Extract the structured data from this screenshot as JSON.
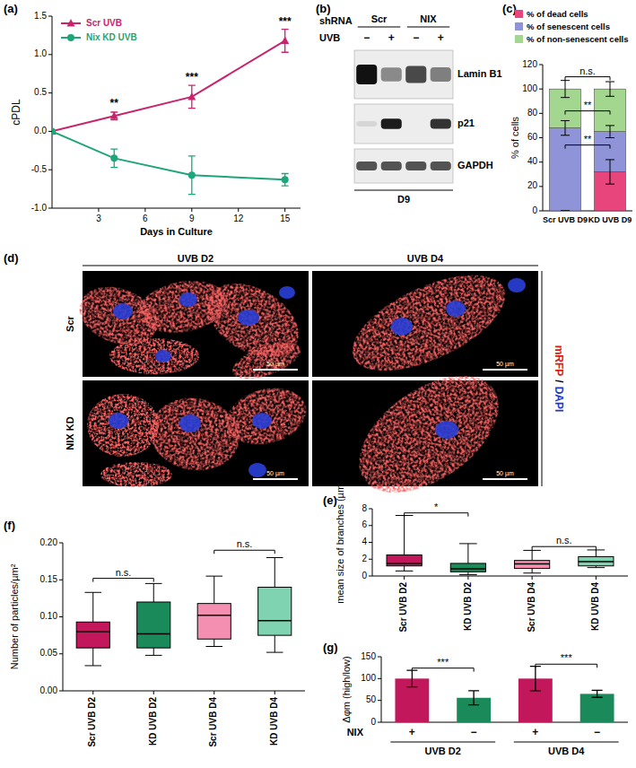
{
  "chart_data": [
    {
      "panel": "(a)",
      "type": "line",
      "x_label": "Days in Culture",
      "y_label": "cPDL",
      "xlim": [
        0,
        16
      ],
      "xticks": [
        3,
        6,
        9,
        12,
        15
      ],
      "ylim": [
        -1,
        1.5
      ],
      "yticks": [
        {
          "value": -1,
          "label": "-1.0"
        },
        {
          "value": -0.5,
          "label": "-0.5"
        },
        {
          "value": 0,
          "label": "0.0"
        },
        {
          "value": 0.5,
          "label": "0.5"
        },
        {
          "value": 1,
          "label": "1.0"
        },
        {
          "value": 1.5,
          "label": "1.5"
        }
      ],
      "legend": "upper left",
      "x": [
        0,
        4,
        9,
        15
      ],
      "series": [
        {
          "name": "Scr UVB",
          "color": "#c8246c",
          "marker": "triangle",
          "values": [
            0,
            0.2,
            0.45,
            1.18
          ],
          "errors": [
            0,
            0.05,
            0.15,
            0.15
          ]
        },
        {
          "name": "Nix KD UVB",
          "color": "#1fa57a",
          "marker": "circle",
          "values": [
            0,
            -0.35,
            -0.57,
            -0.63
          ],
          "errors": [
            0,
            0.12,
            0.25,
            0.08
          ]
        }
      ],
      "annotations": [
        {
          "x": 4,
          "y": 0.32,
          "text": "**"
        },
        {
          "x": 9,
          "y": 0.66,
          "text": "***"
        },
        {
          "x": 15,
          "y": 1.38,
          "text": "***"
        }
      ]
    },
    {
      "panel": "(c)",
      "type": "bar",
      "stacked": true,
      "categories": [
        "Scr UVB D9",
        "KD UVB D9"
      ],
      "y_label": "% of cells",
      "ylim": [
        0,
        120
      ],
      "yticks": [
        0,
        20,
        40,
        60,
        80,
        100,
        120
      ],
      "legend": "top",
      "series": [
        {
          "name": "% of dead cells",
          "color": "#e8457c",
          "values": [
            0,
            32
          ],
          "errors": [
            0,
            10
          ]
        },
        {
          "name": "% of senescent cells",
          "color": "#8f93d8",
          "values": [
            68,
            33
          ],
          "errors": [
            6,
            5
          ]
        },
        {
          "name": "% of non-senescent cells",
          "color": "#a3d68f",
          "values": [
            32,
            35
          ],
          "errors": [
            7,
            6
          ]
        }
      ],
      "annotations": [
        {
          "between": [
            0,
            1
          ],
          "y": 110,
          "text": "n.s."
        },
        {
          "between": [
            0,
            1
          ],
          "y": 82,
          "text": "**"
        },
        {
          "between": [
            0,
            1
          ],
          "y": 54,
          "text": "**"
        }
      ]
    },
    {
      "panel": "(e)",
      "type": "box",
      "categories": [
        "Scr UVB D2",
        "KD UVB D2",
        "Scr UVB D4",
        "KD UVB D4"
      ],
      "colors": [
        "#c2185b",
        "#1a8a5a",
        "#f48fb1",
        "#7fd3b0"
      ],
      "y_label": "mean size of branches (µm)",
      "ylim": [
        0,
        8
      ],
      "yticks": [
        0,
        2,
        4,
        6,
        8
      ],
      "min": [
        0.6,
        0.15,
        0.35,
        1.0
      ],
      "q1": [
        1.2,
        0.5,
        0.9,
        1.2
      ],
      "median": [
        1.5,
        0.85,
        1.45,
        1.7
      ],
      "q3": [
        2.5,
        1.5,
        1.85,
        2.3
      ],
      "max": [
        7.2,
        3.85,
        3.05,
        3.1
      ],
      "annotations": [
        {
          "between": [
            0,
            1
          ],
          "y": 7.5,
          "text": "*"
        },
        {
          "between": [
            2,
            3
          ],
          "y": 3.5,
          "text": "n.s."
        }
      ]
    },
    {
      "panel": "(f)",
      "type": "box",
      "categories": [
        "Scr UVB D2",
        "KD UVB D2",
        "Scr UVB D4",
        "KD UVB D4"
      ],
      "colors": [
        "#c2185b",
        "#1a8a5a",
        "#f48fb1",
        "#7fd3b0"
      ],
      "y_label": "Number of particles/µm²",
      "ylim": [
        0,
        0.2
      ],
      "yticks": [
        {
          "value": 0,
          "label": "0.00"
        },
        {
          "value": 0.05,
          "label": "0.05"
        },
        {
          "value": 0.1,
          "label": "0.10"
        },
        {
          "value": 0.15,
          "label": "0.15"
        },
        {
          "value": 0.2,
          "label": "0.20"
        }
      ],
      "min": [
        0.034,
        0.048,
        0.06,
        0.052
      ],
      "q1": [
        0.058,
        0.058,
        0.07,
        0.075
      ],
      "median": [
        0.08,
        0.077,
        0.102,
        0.095
      ],
      "q3": [
        0.093,
        0.12,
        0.118,
        0.14
      ],
      "max": [
        0.133,
        0.145,
        0.155,
        0.18
      ],
      "annotations": [
        {
          "between": [
            0,
            1
          ],
          "y": 0.152,
          "text": "n.s."
        },
        {
          "between": [
            2,
            3
          ],
          "y": 0.19,
          "text": "n.s."
        }
      ]
    },
    {
      "panel": "(g)",
      "type": "bar",
      "categories": [
        "+",
        "−",
        "+",
        "−"
      ],
      "category_title": "NIX",
      "groups": [
        {
          "label": "UVB D2",
          "members": [
            0,
            1
          ]
        },
        {
          "label": "UVB D4",
          "members": [
            2,
            3
          ]
        }
      ],
      "colors": [
        "#c2185b",
        "#1a8a5a",
        "#c2185b",
        "#1a8a5a"
      ],
      "y_label": "Δφm (high/low)",
      "ylim": [
        0,
        150
      ],
      "yticks": [
        0,
        50,
        100,
        150
      ],
      "values": [
        100,
        56,
        100,
        65
      ],
      "errors": [
        19,
        16,
        28,
        8
      ],
      "annotations": [
        {
          "between": [
            0,
            1
          ],
          "y": 124,
          "text": "***"
        },
        {
          "between": [
            2,
            3
          ],
          "y": 133,
          "text": "***"
        }
      ]
    }
  ],
  "blot": {
    "panel": "(b)",
    "header": "shRNA",
    "groups": [
      {
        "label": "Scr",
        "members": [
          0,
          1
        ]
      },
      {
        "label": "NIX",
        "members": [
          2,
          3
        ]
      }
    ],
    "treatment": "UVB",
    "lanes": [
      "−",
      "+",
      "−",
      "+"
    ],
    "rows": [
      {
        "label": "Lamin B1",
        "intensity": [
          1,
          0.45,
          0.75,
          0.5
        ]
      },
      {
        "label": "p21",
        "intensity": [
          0.1,
          0.95,
          0,
          0.85
        ]
      },
      {
        "label": "GAPDH",
        "intensity": [
          0.7,
          0.7,
          0.7,
          0.7
        ]
      }
    ],
    "footer": "D9"
  },
  "micrographs": {
    "panel": "(d)",
    "columns": [
      "UVB D2",
      "UVB D4"
    ],
    "rows": [
      "Scr",
      "NIX KD"
    ],
    "scale_bar": "50 µm",
    "stain": [
      {
        "text": "mRFP",
        "color": "#e01818"
      },
      {
        "text": "/",
        "color": "#000000"
      },
      {
        "text": "DAPI",
        "color": "#1a3ad0"
      }
    ]
  }
}
